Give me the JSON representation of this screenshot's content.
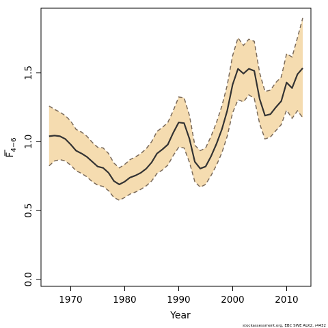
{
  "chart_data": {
    "type": "line",
    "title": "",
    "xlabel": "Year",
    "ylabel": "F4−6",
    "ylabel_parts": {
      "main": "F",
      "subscript": "4−6"
    },
    "xlim": [
      1964.5,
      2014.5
    ],
    "ylim": [
      -0.05,
      1.97
    ],
    "x_ticks": [
      1970,
      1980,
      1990,
      2000,
      2010
    ],
    "x_tick_labels": [
      "1970",
      "1980",
      "1990",
      "2000",
      "2010"
    ],
    "y_ticks": [
      0.0,
      0.5,
      1.0,
      1.5
    ],
    "y_tick_labels": [
      "0.0",
      "0.5",
      "1.0",
      "1.5"
    ],
    "grid": false,
    "legend": "none",
    "x": [
      1966,
      1967,
      1968,
      1969,
      1970,
      1971,
      1972,
      1973,
      1974,
      1975,
      1976,
      1977,
      1978,
      1979,
      1980,
      1981,
      1982,
      1983,
      1984,
      1985,
      1986,
      1987,
      1988,
      1989,
      1990,
      1991,
      1992,
      1993,
      1994,
      1995,
      1996,
      1997,
      1998,
      1999,
      2000,
      2001,
      2002,
      2003,
      2004,
      2005,
      2006,
      2007,
      2008,
      2009,
      2010,
      2011,
      2012,
      2013
    ],
    "series": [
      {
        "name": "",
        "role": "estimate",
        "color": "#333333",
        "values": [
          1.04,
          1.045,
          1.04,
          1.02,
          0.98,
          0.935,
          0.915,
          0.89,
          0.855,
          0.82,
          0.81,
          0.775,
          0.715,
          0.69,
          0.71,
          0.74,
          0.755,
          0.775,
          0.805,
          0.85,
          0.915,
          0.945,
          0.98,
          1.065,
          1.14,
          1.135,
          1.02,
          0.855,
          0.805,
          0.82,
          0.895,
          0.985,
          1.09,
          1.225,
          1.415,
          1.53,
          1.495,
          1.53,
          1.515,
          1.31,
          1.19,
          1.2,
          1.25,
          1.295,
          1.43,
          1.39,
          1.49,
          1.535
        ]
      },
      {
        "name": "",
        "role": "upper",
        "color": "#7a6a5a",
        "values": [
          1.26,
          1.235,
          1.215,
          1.19,
          1.15,
          1.09,
          1.07,
          1.04,
          0.995,
          0.96,
          0.955,
          0.915,
          0.845,
          0.81,
          0.835,
          0.87,
          0.89,
          0.915,
          0.95,
          1.0,
          1.075,
          1.105,
          1.14,
          1.225,
          1.325,
          1.32,
          1.19,
          0.975,
          0.935,
          0.955,
          1.04,
          1.14,
          1.26,
          1.41,
          1.625,
          1.755,
          1.7,
          1.745,
          1.73,
          1.5,
          1.365,
          1.375,
          1.43,
          1.47,
          1.64,
          1.615,
          1.755,
          1.9
        ]
      },
      {
        "name": "",
        "role": "lower",
        "color": "#7a6a5a",
        "values": [
          0.825,
          0.86,
          0.87,
          0.86,
          0.83,
          0.79,
          0.77,
          0.745,
          0.71,
          0.685,
          0.675,
          0.645,
          0.595,
          0.575,
          0.595,
          0.62,
          0.635,
          0.655,
          0.68,
          0.715,
          0.77,
          0.795,
          0.83,
          0.9,
          0.96,
          0.955,
          0.85,
          0.71,
          0.67,
          0.69,
          0.755,
          0.83,
          0.92,
          1.04,
          1.21,
          1.305,
          1.29,
          1.34,
          1.315,
          1.13,
          1.02,
          1.035,
          1.08,
          1.125,
          1.23,
          1.17,
          1.225,
          1.175
        ]
      }
    ],
    "band_fill": "#f5dcb0",
    "credit": "stockassessment.org, EBC SWE ALK2, r4432"
  }
}
